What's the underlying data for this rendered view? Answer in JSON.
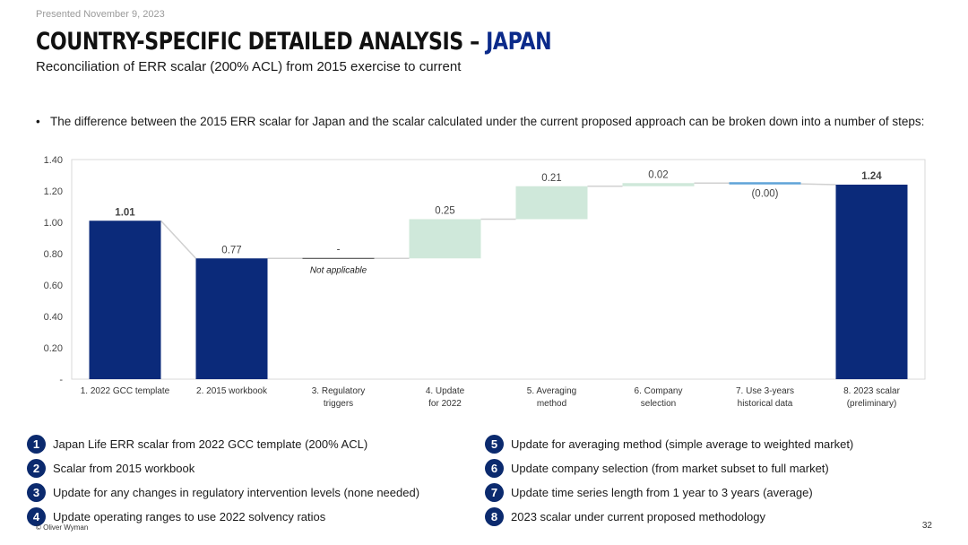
{
  "presented": "Presented November 9, 2023",
  "title_main": "COUNTRY-SPECIFIC DETAILED ANALYSIS – ",
  "title_accent": "JAPAN",
  "subtitle": "Reconciliation of ERR scalar (200% ACL) from 2015 exercise to current",
  "bullet": "The difference between the 2015 ERR scalar for Japan and the scalar calculated under the current proposed approach can be broken down into a number of steps:",
  "colors": {
    "total": "#0b2a7a",
    "step": "#cfe8da",
    "accent": "#0b2a8a",
    "connector": "#d0d0d0"
  },
  "chart_data": {
    "type": "bar",
    "subtype": "waterfall",
    "categories": [
      [
        "1. 2022 GCC template"
      ],
      [
        "2. 2015 workbook"
      ],
      [
        "3. Regulatory",
        "triggers"
      ],
      [
        "4. Update",
        "for 2022"
      ],
      [
        "5. Averaging",
        "method"
      ],
      [
        "6. Company",
        "selection"
      ],
      [
        "7. Use 3-years",
        "historical data"
      ],
      [
        "8. 2023 scalar",
        "(preliminary)"
      ]
    ],
    "bars": [
      {
        "kind": "total",
        "start": 0,
        "end": 1.01,
        "label": "1.01",
        "bold": true
      },
      {
        "kind": "total",
        "start": 0,
        "end": 0.77,
        "label": "0.77",
        "bold": false
      },
      {
        "kind": "step",
        "start": 0.77,
        "end": 0.77,
        "label": "-",
        "bold": false
      },
      {
        "kind": "step",
        "start": 0.77,
        "end": 1.02,
        "label": "0.25",
        "bold": false
      },
      {
        "kind": "step",
        "start": 1.02,
        "end": 1.23,
        "label": "0.21",
        "bold": false
      },
      {
        "kind": "step",
        "start": 1.23,
        "end": 1.25,
        "label": "0.02",
        "bold": false
      },
      {
        "kind": "step",
        "start": 1.25,
        "end": 1.245,
        "label": "(0.00)",
        "bold": false
      },
      {
        "kind": "total",
        "start": 0,
        "end": 1.24,
        "label": "1.24",
        "bold": true
      }
    ],
    "annotation": "Not applicable",
    "yticks": [
      "-",
      "0.20",
      "0.40",
      "0.60",
      "0.80",
      "1.00",
      "1.20",
      "1.40"
    ],
    "ylim": [
      0,
      1.4
    ]
  },
  "legend": [
    {
      "num": "1",
      "text": "Japan Life ERR scalar from 2022 GCC template (200% ACL)"
    },
    {
      "num": "2",
      "text": "Scalar from 2015 workbook"
    },
    {
      "num": "3",
      "text": "Update for any changes in regulatory intervention levels (none needed)"
    },
    {
      "num": "4",
      "text": "Update operating ranges to use 2022 solvency ratios"
    },
    {
      "num": "5",
      "text": "Update for averaging method (simple average to weighted market)"
    },
    {
      "num": "6",
      "text": "Update company selection (from market subset to full market)"
    },
    {
      "num": "7",
      "text": "Update time series length from 1 year to 3 years (average)"
    },
    {
      "num": "8",
      "text": "2023 scalar under current proposed methodology"
    }
  ],
  "footer_left": "© Oliver Wyman",
  "page_number": "32"
}
